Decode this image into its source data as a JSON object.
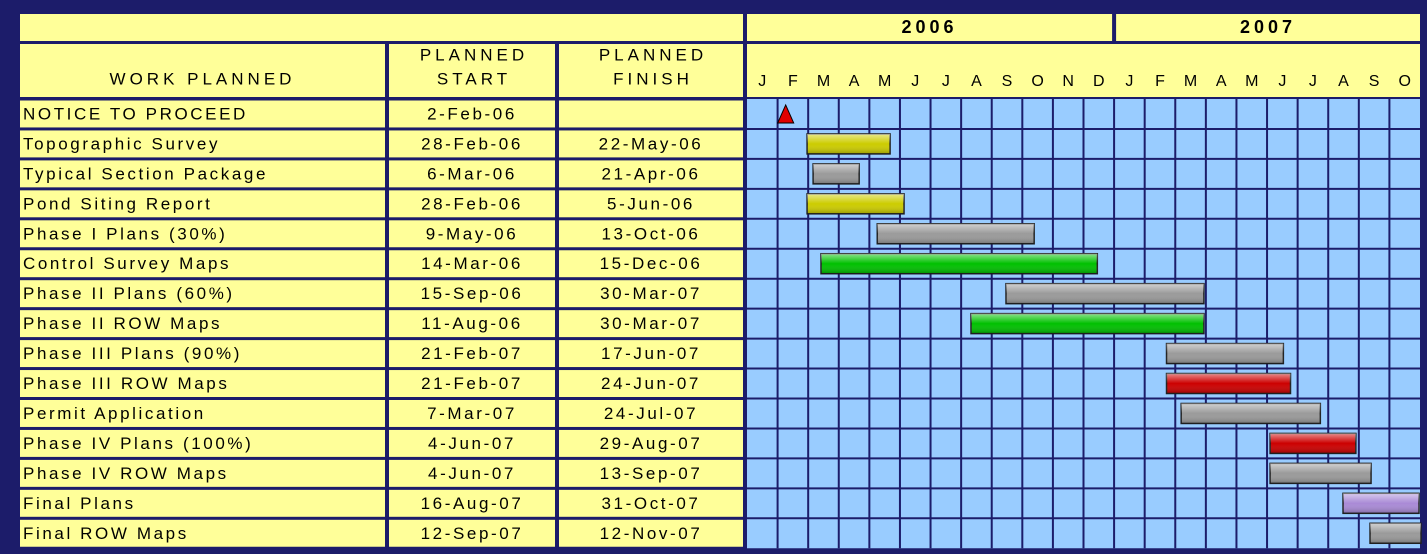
{
  "chart_data": {
    "type": "gantt",
    "headers": {
      "task": "WORK PLANNED",
      "start": [
        "PLANNED",
        "START"
      ],
      "finish": [
        "PLANNED",
        "FINISH"
      ]
    },
    "years": [
      "2006",
      "2007"
    ],
    "months": [
      "J",
      "F",
      "M",
      "A",
      "M",
      "J",
      "J",
      "A",
      "S",
      "O",
      "N",
      "D",
      "J",
      "F",
      "M",
      "A",
      "M",
      "J",
      "J",
      "A",
      "S",
      "O"
    ],
    "tasks": [
      {
        "name": "NOTICE TO PROCEED",
        "start": "2-Feb-06",
        "color": "#e00000",
        "milestone": true
      },
      {
        "name": "Topographic Survey",
        "start": "28-Feb-06",
        "finish": "22-May-06",
        "color": "#cccc00"
      },
      {
        "name": "Typical Section Package",
        "start": "6-Mar-06",
        "finish": "21-Apr-06",
        "color": "#9a9a9a"
      },
      {
        "name": "Pond Siting Report",
        "start": "28-Feb-06",
        "finish": "5-Jun-06",
        "color": "#cccc00"
      },
      {
        "name": "Phase I Plans (30%)",
        "start": "9-May-06",
        "finish": "13-Oct-06",
        "color": "#9a9a9a"
      },
      {
        "name": "Control Survey Maps",
        "start": "14-Mar-06",
        "finish": "15-Dec-06",
        "color": "#00c000"
      },
      {
        "name": "Phase II Plans (60%)",
        "start": "15-Sep-06",
        "finish": "30-Mar-07",
        "color": "#9a9a9a"
      },
      {
        "name": "Phase II ROW  Maps",
        "start": "11-Aug-06",
        "finish": "30-Mar-07",
        "color": "#00c000"
      },
      {
        "name": "Phase III Plans (90%)",
        "start": "21-Feb-07",
        "finish": "17-Jun-07",
        "color": "#9a9a9a"
      },
      {
        "name": "Phase III ROW  Maps",
        "start": "21-Feb-07",
        "finish": "24-Jun-07",
        "color": "#cc0000"
      },
      {
        "name": "Permit Application",
        "start": "7-Mar-07",
        "finish": "24-Jul-07",
        "color": "#9a9a9a"
      },
      {
        "name": "Phase IV Plans (100%)",
        "start": "4-Jun-07",
        "finish": "29-Aug-07",
        "color": "#cc0000"
      },
      {
        "name": "Phase IV ROW Maps",
        "start": "4-Jun-07",
        "finish": "13-Sep-07",
        "color": "#9a9a9a"
      },
      {
        "name": "Final Plans",
        "start": "16-Aug-07",
        "finish": "31-Oct-07",
        "color": "#a98ad6"
      },
      {
        "name": "Final ROW  Maps",
        "start": "12-Sep-07",
        "finish": "12-Nov-07",
        "color": "#9a9a9a"
      }
    ]
  }
}
